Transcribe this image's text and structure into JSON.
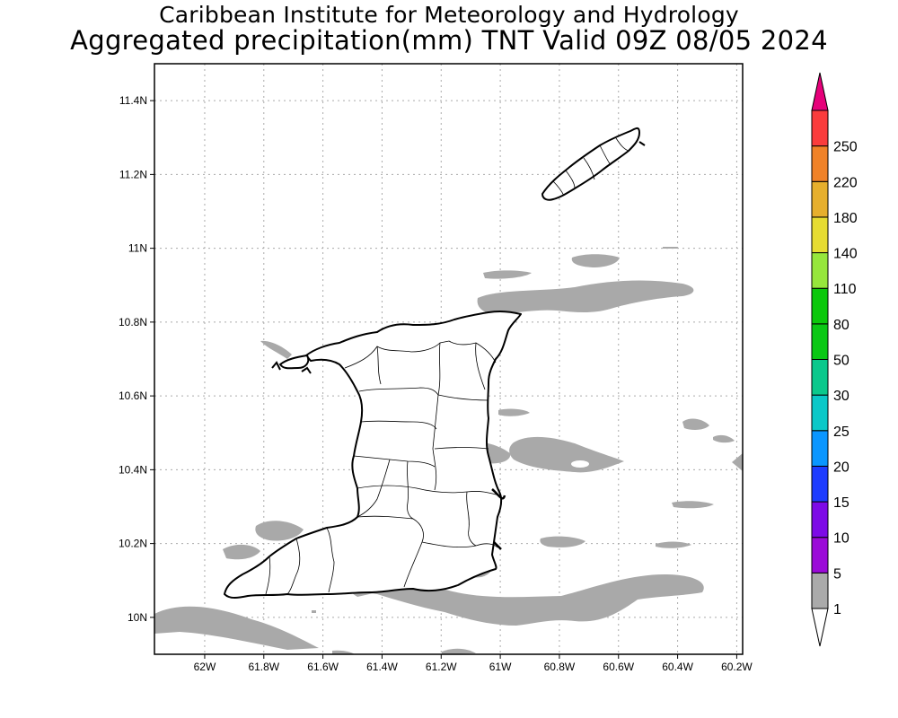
{
  "title": {
    "line1": "Caribbean Institute for Meteorology and Hydrology",
    "line2": "Aggregated precipitation(mm) TNT Valid 09Z 08/05 2024"
  },
  "map": {
    "lon_range": [
      -62.17,
      -60.18
    ],
    "lat_range": [
      9.9,
      11.5
    ],
    "lon_ticks": [
      {
        "value": -62.0,
        "label": "62W"
      },
      {
        "value": -61.8,
        "label": "61.8W"
      },
      {
        "value": -61.6,
        "label": "61.6W"
      },
      {
        "value": -61.4,
        "label": "61.4W"
      },
      {
        "value": -61.2,
        "label": "61.2W"
      },
      {
        "value": -61.0,
        "label": "61W"
      },
      {
        "value": -60.8,
        "label": "60.8W"
      },
      {
        "value": -60.6,
        "label": "60.6W"
      },
      {
        "value": -60.4,
        "label": "60.4W"
      },
      {
        "value": -60.2,
        "label": "60.2W"
      }
    ],
    "lat_ticks": [
      {
        "value": 10.0,
        "label": "10N"
      },
      {
        "value": 10.2,
        "label": "10.2N"
      },
      {
        "value": 10.4,
        "label": "10.4N"
      },
      {
        "value": 10.6,
        "label": "10.6N"
      },
      {
        "value": 10.8,
        "label": "10.8N"
      },
      {
        "value": 11.0,
        "label": "11N"
      },
      {
        "value": 11.2,
        "label": "11.2N"
      },
      {
        "value": 11.4,
        "label": "11.4N"
      }
    ],
    "grid": "dotted",
    "land_color": "#ffffff",
    "coast_color": "#000000",
    "precip_fill_color": "#a9a9a9"
  },
  "colorbar": {
    "levels": [
      "1",
      "5",
      "10",
      "15",
      "20",
      "25",
      "30",
      "50",
      "80",
      "110",
      "140",
      "180",
      "220",
      "250"
    ],
    "colors": [
      "#aaaaaa",
      "#9b0ad8",
      "#7d0ae6",
      "#1e3cff",
      "#0a96ff",
      "#0ac8c8",
      "#0ac88c",
      "#0ac814",
      "#0ac80a",
      "#96e63c",
      "#e6dc32",
      "#e6af2d",
      "#f08228",
      "#fa3c3c"
    ],
    "top_color": "#e6007a",
    "bottom_color": "#ffffff"
  }
}
